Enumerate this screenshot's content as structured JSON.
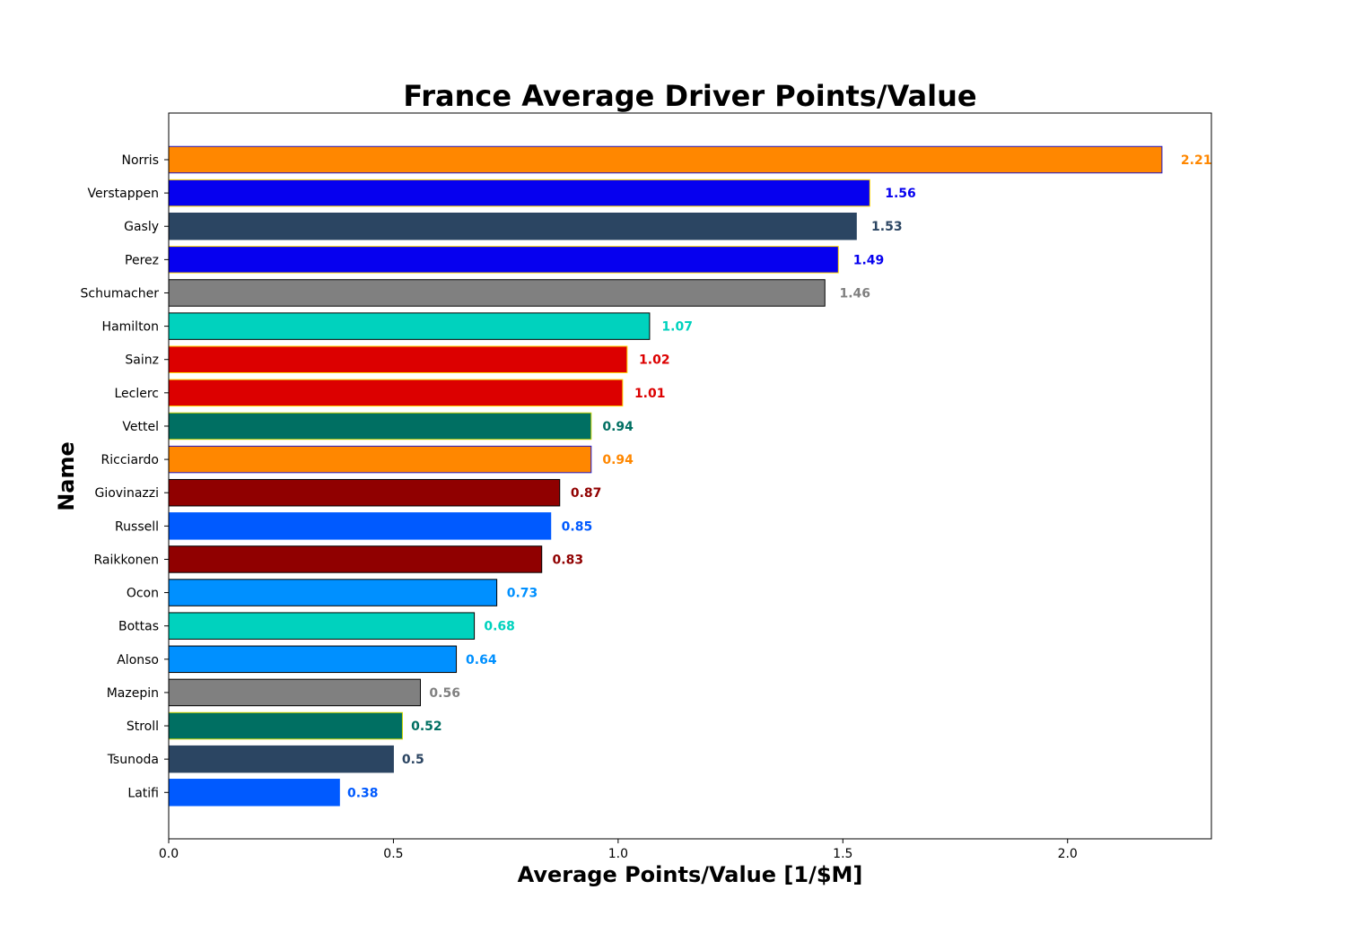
{
  "chart_data": {
    "type": "bar",
    "orientation": "horizontal",
    "title": "France Average Driver Points/Value",
    "xlabel": "Average Points/Value [1/$M]",
    "ylabel": "Name",
    "xlim": [
      0,
      2.32
    ],
    "xticks": [
      "0.0",
      "0.5",
      "1.0",
      "1.5",
      "2.0"
    ],
    "xtick_values": [
      0,
      0.5,
      1.0,
      1.5,
      2.0
    ],
    "grid": false,
    "bars": [
      {
        "name": "Norris",
        "value": 2.21,
        "label": "2.21",
        "color": "#FF8700",
        "edge": "#1E16C8"
      },
      {
        "name": "Verstappen",
        "value": 1.56,
        "label": "1.56",
        "color": "#0600EF",
        "edge": "#FFD700"
      },
      {
        "name": "Gasly",
        "value": 1.53,
        "label": "1.53",
        "color": "#2B4562",
        "edge": "#2B4562"
      },
      {
        "name": "Perez",
        "value": 1.49,
        "label": "1.49",
        "color": "#0600EF",
        "edge": "#FFD700"
      },
      {
        "name": "Schumacher",
        "value": 1.46,
        "label": "1.46",
        "color": "#808080",
        "edge": "#000000"
      },
      {
        "name": "Hamilton",
        "value": 1.07,
        "label": "1.07",
        "color": "#00D2BE",
        "edge": "#000000"
      },
      {
        "name": "Sainz",
        "value": 1.02,
        "label": "1.02",
        "color": "#DC0000",
        "edge": "#FFD700"
      },
      {
        "name": "Leclerc",
        "value": 1.01,
        "label": "1.01",
        "color": "#DC0000",
        "edge": "#FFD700"
      },
      {
        "name": "Vettel",
        "value": 0.94,
        "label": "0.94",
        "color": "#006F62",
        "edge": "#C8D400"
      },
      {
        "name": "Ricciardo",
        "value": 0.94,
        "label": "0.94",
        "color": "#FF8700",
        "edge": "#1E16C8"
      },
      {
        "name": "Giovinazzi",
        "value": 0.87,
        "label": "0.87",
        "color": "#900000",
        "edge": "#000000"
      },
      {
        "name": "Russell",
        "value": 0.85,
        "label": "0.85",
        "color": "#005AFF",
        "edge": "#005AFF"
      },
      {
        "name": "Raikkonen",
        "value": 0.83,
        "label": "0.83",
        "color": "#900000",
        "edge": "#000000"
      },
      {
        "name": "Ocon",
        "value": 0.73,
        "label": "0.73",
        "color": "#0090FF",
        "edge": "#000000"
      },
      {
        "name": "Bottas",
        "value": 0.68,
        "label": "0.68",
        "color": "#00D2BE",
        "edge": "#000000"
      },
      {
        "name": "Alonso",
        "value": 0.64,
        "label": "0.64",
        "color": "#0090FF",
        "edge": "#000000"
      },
      {
        "name": "Mazepin",
        "value": 0.56,
        "label": "0.56",
        "color": "#808080",
        "edge": "#000000"
      },
      {
        "name": "Stroll",
        "value": 0.52,
        "label": "0.52",
        "color": "#006F62",
        "edge": "#C8D400"
      },
      {
        "name": "Tsunoda",
        "value": 0.5,
        "label": "0.5",
        "color": "#2B4562",
        "edge": "#2B4562"
      },
      {
        "name": "Latifi",
        "value": 0.38,
        "label": "0.38",
        "color": "#005AFF",
        "edge": "#005AFF"
      }
    ]
  }
}
